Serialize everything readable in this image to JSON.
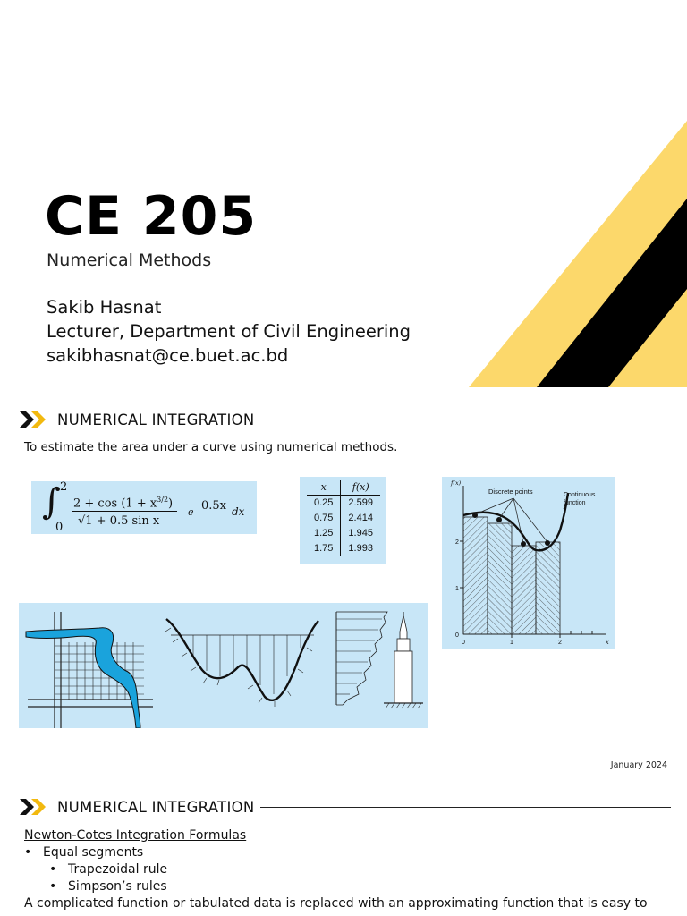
{
  "title_slide": {
    "course_code": "CE 205",
    "course_name": "Numerical Methods",
    "presenter": "Sakib Hasnat",
    "role": "Lecturer, Department of Civil Engineering",
    "email": "sakibhasnat@ce.buet.ac.bd",
    "accent_colors": {
      "yellow": "#fcd86b",
      "black": "#000000"
    }
  },
  "slide1": {
    "header": "NUMERICAL INTEGRATION",
    "intro": "To estimate the area under a curve using numerical methods.",
    "formula": {
      "upper_limit": "2",
      "lower_limit": "0",
      "numerator": "2 + cos (1 + x",
      "exponent": "3/2",
      "numerator_close": ")",
      "denominator": "√1 + 0.5 sin x",
      "factor_base": "e",
      "factor_exp": "0.5x",
      "dx": "dx"
    },
    "table": {
      "headers": [
        "x",
        "f(x)"
      ],
      "rows": [
        [
          "0.25",
          "2.599"
        ],
        [
          "0.75",
          "2.414"
        ],
        [
          "1.25",
          "1.945"
        ],
        [
          "1.75",
          "1.993"
        ]
      ]
    },
    "graph": {
      "y_label": "f(x)",
      "x_label": "x",
      "discrete_label": "Discrete points",
      "continuous_label": "Continuous function",
      "y_ticks": [
        "0",
        "1",
        "2"
      ],
      "x_ticks": [
        "0",
        "1",
        "2"
      ]
    },
    "panel_color": "#c8e6f7",
    "date": "January 2024"
  },
  "slide2": {
    "header": "NUMERICAL INTEGRATION",
    "subtitle": "Newton-Cotes Integration Formulas",
    "bullet_char": "•",
    "bullet": "Equal segments",
    "subbullets": [
      "Trapezoidal rule",
      "Simpson’s rules"
    ],
    "paragraph": "A complicated function or tabulated data is replaced with an approximating function that is easy to"
  }
}
